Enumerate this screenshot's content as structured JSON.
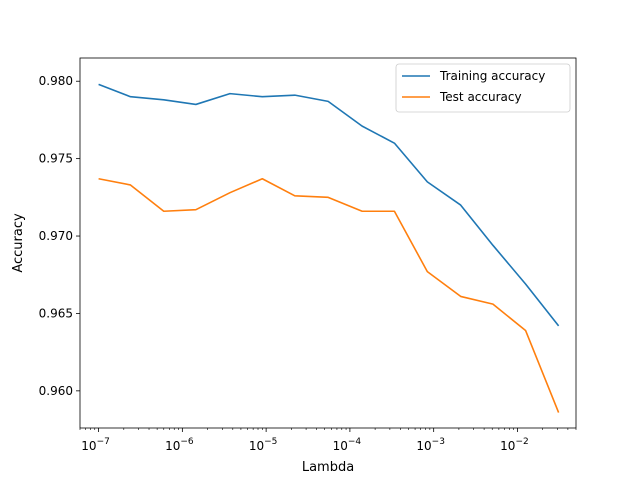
{
  "chart_data": {
    "type": "line",
    "title": "",
    "xlabel": "Lambda",
    "ylabel": "Accuracy",
    "xscale": "log",
    "xlim": [
      6e-08,
      0.05
    ],
    "ylim": [
      0.9576,
      0.9815
    ],
    "grid": false,
    "legend_position": "top-right",
    "x": [
      1e-07,
      2.4e-07,
      6e-07,
      1.45e-06,
      3.7e-06,
      9e-06,
      2.2e-05,
      5.5e-05,
      0.00014,
      0.00034,
      0.00084,
      0.0021,
      0.0051,
      0.0125,
      0.031
    ],
    "x_ticks": [
      {
        "value": 1e-07,
        "base": "10",
        "exp": "−7"
      },
      {
        "value": 1e-06,
        "base": "10",
        "exp": "−6"
      },
      {
        "value": 1e-05,
        "base": "10",
        "exp": "−5"
      },
      {
        "value": 0.0001,
        "base": "10",
        "exp": "−4"
      },
      {
        "value": 0.001,
        "base": "10",
        "exp": "−3"
      },
      {
        "value": 0.01,
        "base": "10",
        "exp": "−2"
      }
    ],
    "y_ticks": [
      {
        "value": 0.96,
        "label": "0.960"
      },
      {
        "value": 0.965,
        "label": "0.965"
      },
      {
        "value": 0.97,
        "label": "0.970"
      },
      {
        "value": 0.975,
        "label": "0.975"
      },
      {
        "value": 0.98,
        "label": "0.980"
      }
    ],
    "series": [
      {
        "name": "Training accuracy",
        "color": "#1f77b4",
        "values": [
          0.9798,
          0.979,
          0.9788,
          0.9785,
          0.9792,
          0.979,
          0.9791,
          0.9787,
          0.9771,
          0.976,
          0.9735,
          0.972,
          0.9694,
          0.9669,
          0.9642
        ]
      },
      {
        "name": "Test accuracy",
        "color": "#ff7f0e",
        "values": [
          0.9737,
          0.9733,
          0.9716,
          0.9717,
          0.9728,
          0.9737,
          0.9726,
          0.9725,
          0.9716,
          0.9716,
          0.9677,
          0.9661,
          0.9656,
          0.9639,
          0.9586
        ]
      }
    ]
  }
}
